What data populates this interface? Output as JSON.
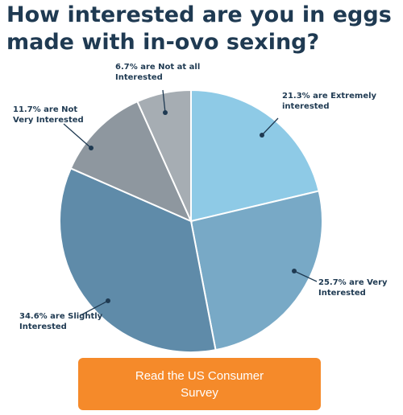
{
  "chart_data": {
    "type": "pie",
    "title": "How interested are you in eggs made with in-ovo sexing?",
    "slices": [
      {
        "label": "Extremely interested",
        "value": 21.3,
        "color": "#8ecae6",
        "text_lines": [
          "21.3% are Extremely",
          "interested"
        ]
      },
      {
        "label": "Very Interested",
        "value": 25.7,
        "color": "#78a9c6",
        "text_lines": [
          "25.7% are Very",
          "Interested"
        ]
      },
      {
        "label": "Slightly Interested",
        "value": 34.6,
        "color": "#5f8ba9",
        "text_lines": [
          "34.6% are Slightly",
          "Interested"
        ]
      },
      {
        "label": "Not Very Interested",
        "value": 11.7,
        "color": "#8e979f",
        "text_lines": [
          "11.7% are Not",
          "Very Interested"
        ]
      },
      {
        "label": "Not at all Interested",
        "value": 6.7,
        "color": "#a6adb3",
        "text_lines": [
          "6.7% are Not at all",
          "Interested"
        ]
      }
    ]
  },
  "cta": {
    "label": "Read the US Consumer Survey"
  }
}
